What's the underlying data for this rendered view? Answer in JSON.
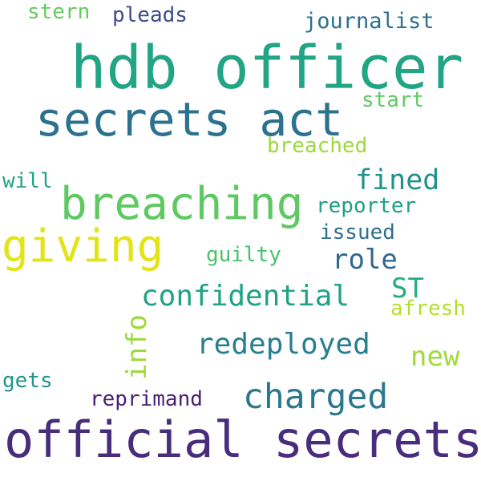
{
  "words": {
    "hdb_officer": {
      "text": "hdb officer",
      "color": "#21a585"
    },
    "secrets_act": {
      "text": "secrets act",
      "color": "#2c718e"
    },
    "breaching": {
      "text": "breaching",
      "color": "#5ec962"
    },
    "giving": {
      "text": "giving",
      "color": "#e2e418"
    },
    "official": {
      "text": "official secrets",
      "color": "#472d7b"
    },
    "charged": {
      "text": "charged",
      "color": "#2a788e"
    },
    "confidential": {
      "text": "confidential",
      "color": "#1fa287"
    },
    "redeployed": {
      "text": "redeployed",
      "color": "#277f8e"
    },
    "fined": {
      "text": "fined",
      "color": "#21918c"
    },
    "role": {
      "text": "role",
      "color": "#31688e"
    },
    "st": {
      "text": "ST",
      "color": "#25ac82"
    },
    "new": {
      "text": "new",
      "color": "#a0da39"
    },
    "info": {
      "text": "info",
      "color": "#9dd93b"
    },
    "journalist": {
      "text": "journalist",
      "color": "#2d708e"
    },
    "pleads": {
      "text": "pleads",
      "color": "#3e4a89"
    },
    "stern": {
      "text": "stern",
      "color": "#65cb5e"
    },
    "start": {
      "text": "start",
      "color": "#5ec962"
    },
    "breached": {
      "text": "breached",
      "color": "#9bd93c"
    },
    "will": {
      "text": "will",
      "color": "#20a386"
    },
    "reporter": {
      "text": "reporter",
      "color": "#1f9e89"
    },
    "issued": {
      "text": "issued",
      "color": "#2e6e8e"
    },
    "guilty": {
      "text": "guilty",
      "color": "#4ac16d"
    },
    "afresh": {
      "text": "afresh",
      "color": "#b5de2b"
    },
    "gets": {
      "text": "gets",
      "color": "#1f958b"
    },
    "reprimand": {
      "text": "reprimand",
      "color": "#481f70"
    }
  }
}
